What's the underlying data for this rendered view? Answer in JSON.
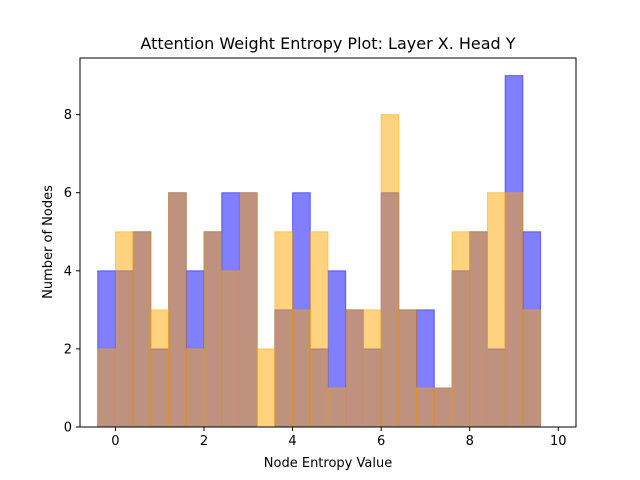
{
  "chart_data": {
    "type": "bar",
    "title": "Attention Weight Entropy Plot: Layer X. Head Y",
    "xlabel": "Node Entropy Value",
    "ylabel": "Number of Nodes",
    "xlim": [
      -0.8,
      10.4
    ],
    "ylim": [
      0,
      9.45
    ],
    "xticks": [
      0,
      2,
      4,
      6,
      8,
      10
    ],
    "yticks": [
      0,
      2,
      4,
      6,
      8
    ],
    "bin_width": 0.4,
    "grid": false,
    "series": [
      {
        "color": "#0000ff",
        "alpha": 0.5,
        "bins": [
          {
            "x": -0.2,
            "count": 4
          },
          {
            "x": 0.2,
            "count": 4
          },
          {
            "x": 0.6,
            "count": 5
          },
          {
            "x": 1.0,
            "count": 2
          },
          {
            "x": 1.4,
            "count": 6
          },
          {
            "x": 1.8,
            "count": 4
          },
          {
            "x": 2.2,
            "count": 5
          },
          {
            "x": 2.6,
            "count": 6
          },
          {
            "x": 3.0,
            "count": 6
          },
          {
            "x": 3.8,
            "count": 3
          },
          {
            "x": 4.2,
            "count": 6
          },
          {
            "x": 4.6,
            "count": 2
          },
          {
            "x": 5.0,
            "count": 4
          },
          {
            "x": 5.4,
            "count": 3
          },
          {
            "x": 5.8,
            "count": 2
          },
          {
            "x": 6.2,
            "count": 6
          },
          {
            "x": 6.6,
            "count": 3
          },
          {
            "x": 7.0,
            "count": 3
          },
          {
            "x": 7.4,
            "count": 1
          },
          {
            "x": 7.8,
            "count": 4
          },
          {
            "x": 8.2,
            "count": 5
          },
          {
            "x": 8.6,
            "count": 2
          },
          {
            "x": 9.0,
            "count": 9
          },
          {
            "x": 9.4,
            "count": 5
          }
        ]
      },
      {
        "color": "#ffa500",
        "alpha": 0.5,
        "bins": [
          {
            "x": -0.2,
            "count": 2
          },
          {
            "x": 0.2,
            "count": 5
          },
          {
            "x": 0.6,
            "count": 5
          },
          {
            "x": 1.0,
            "count": 3
          },
          {
            "x": 1.4,
            "count": 6
          },
          {
            "x": 1.8,
            "count": 2
          },
          {
            "x": 2.2,
            "count": 5
          },
          {
            "x": 2.6,
            "count": 4
          },
          {
            "x": 3.0,
            "count": 6
          },
          {
            "x": 3.4,
            "count": 2
          },
          {
            "x": 3.8,
            "count": 5
          },
          {
            "x": 4.2,
            "count": 3
          },
          {
            "x": 4.6,
            "count": 5
          },
          {
            "x": 5.0,
            "count": 1
          },
          {
            "x": 5.4,
            "count": 3
          },
          {
            "x": 5.8,
            "count": 3
          },
          {
            "x": 6.2,
            "count": 8
          },
          {
            "x": 6.6,
            "count": 3
          },
          {
            "x": 7.0,
            "count": 1
          },
          {
            "x": 7.4,
            "count": 1
          },
          {
            "x": 7.8,
            "count": 5
          },
          {
            "x": 8.2,
            "count": 5
          },
          {
            "x": 8.6,
            "count": 6
          },
          {
            "x": 9.0,
            "count": 6
          },
          {
            "x": 9.4,
            "count": 3
          }
        ]
      }
    ]
  }
}
